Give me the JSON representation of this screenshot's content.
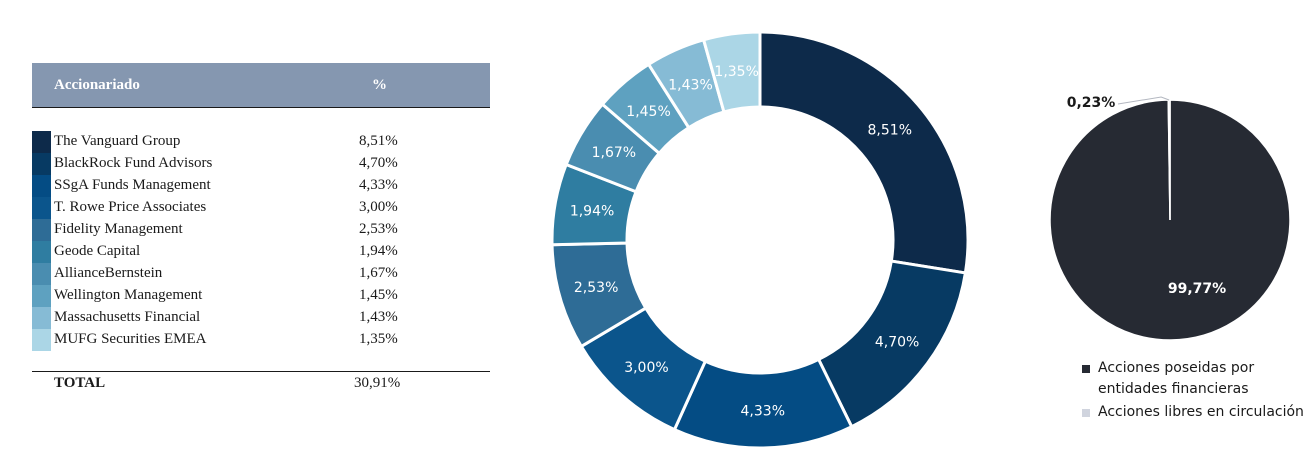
{
  "table": {
    "header_name": "Accionariado",
    "header_pct": "%",
    "rows": [
      {
        "name": "The Vanguard Group",
        "pct": "8,51%",
        "color": "#0d2a4a"
      },
      {
        "name": "BlackRock Fund Advisors",
        "pct": "4,70%",
        "color": "#073a63"
      },
      {
        "name": "SSgA Funds Management",
        "pct": "4,33%",
        "color": "#044c84"
      },
      {
        "name": "T. Rowe Price Associates",
        "pct": "3,00%",
        "color": "#0b558c"
      },
      {
        "name": "Fidelity Management",
        "pct": "2,53%",
        "color": "#2e6c96"
      },
      {
        "name": "Geode Capital",
        "pct": "1,94%",
        "color": "#2f7da1"
      },
      {
        "name": "AllianceBernstein",
        "pct": "1,67%",
        "color": "#4a8db0"
      },
      {
        "name": "Wellington Management",
        "pct": "1,45%",
        "color": "#5ea1c0"
      },
      {
        "name": "Massachusetts Financial",
        "pct": "1,43%",
        "color": "#86bbd5"
      },
      {
        "name": "MUFG Securities EMEA",
        "pct": "1,35%",
        "color": "#abd6e6"
      }
    ],
    "total_label": "TOTAL",
    "total_value": "30,91%"
  },
  "chart_data": [
    {
      "type": "pie",
      "style": "donut",
      "categories": [
        "The Vanguard Group",
        "BlackRock Fund Advisors",
        "SSgA Funds Management",
        "T. Rowe Price Associates",
        "Fidelity Management",
        "Geode Capital",
        "AllianceBernstein",
        "Wellington Management",
        "Massachusetts Financial",
        "MUFG Securities EMEA"
      ],
      "values": [
        8.51,
        4.7,
        4.33,
        3.0,
        2.53,
        1.94,
        1.67,
        1.45,
        1.43,
        1.35
      ],
      "labels": [
        "8,51%",
        "4,70%",
        "4,33%",
        "3,00%",
        "2,53%",
        "1,94%",
        "1,67%",
        "1,45%",
        "1,43%",
        "1,35%"
      ],
      "colors": [
        "#0d2a4a",
        "#073a63",
        "#044c84",
        "#0b558c",
        "#2e6c96",
        "#2f7da1",
        "#4a8db0",
        "#5ea1c0",
        "#86bbd5",
        "#abd6e6"
      ]
    },
    {
      "type": "pie",
      "categories": [
        "Acciones poseidas por entidades financieras",
        "Acciones libres en circulación"
      ],
      "values": [
        99.77,
        0.23
      ],
      "labels": [
        "99,77%",
        "0,23%"
      ],
      "colors": [
        "#262a33",
        "#d0d4de"
      ],
      "legend": [
        "Acciones poseidas por entidades financieras",
        "Acciones libres en circulación"
      ]
    }
  ]
}
